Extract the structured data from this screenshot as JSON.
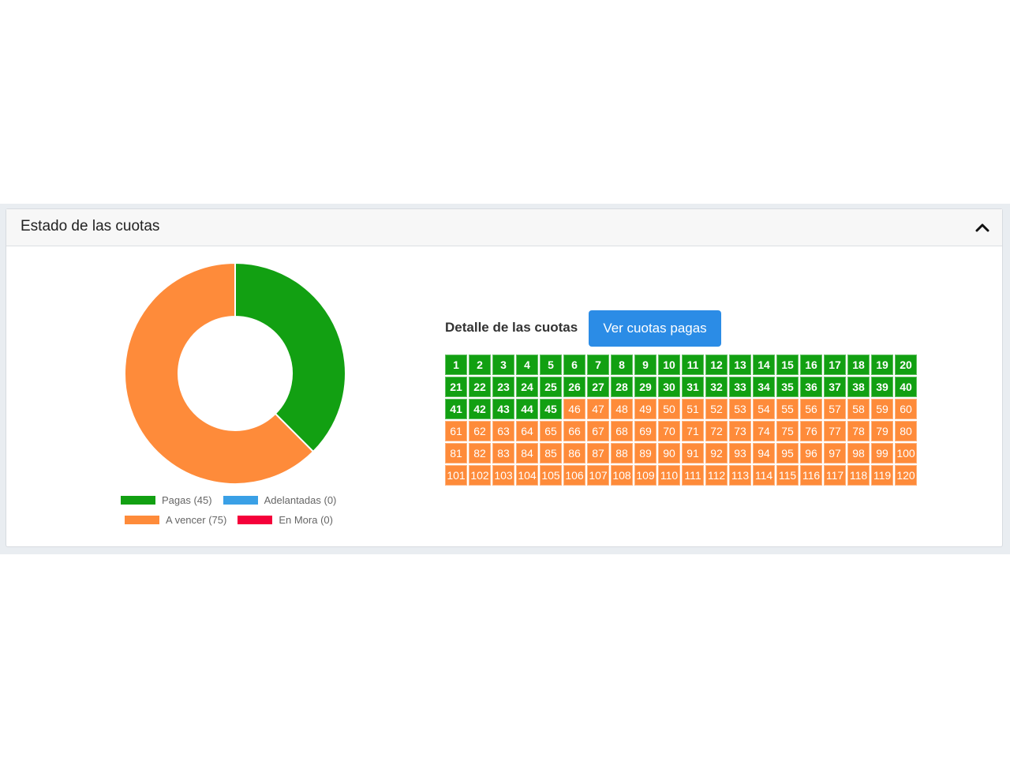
{
  "card": {
    "title": "Estado de las cuotas"
  },
  "icons": {
    "collapse": "chevron-up-icon"
  },
  "colors": {
    "paid": "#12a012",
    "advanced": "#3aa0e6",
    "due": "#fe8b3a",
    "overdue": "#f5003a",
    "button": "#2b8ce6"
  },
  "chart_data": {
    "type": "doughnut",
    "slices": [
      {
        "label": "Pagas",
        "value": 45,
        "color": "#12a012"
      },
      {
        "label": "Adelantadas",
        "value": 0,
        "color": "#3aa0e6"
      },
      {
        "label": "A vencer",
        "value": 75,
        "color": "#fe8b3a"
      },
      {
        "label": "En Mora",
        "value": 0,
        "color": "#f5003a"
      }
    ],
    "legend": {
      "position": "bottom",
      "labels": [
        "Pagas (45)",
        "Adelantadas (0)",
        "A vencer (75)",
        "En Mora (0)"
      ]
    }
  },
  "detail": {
    "label": "Detalle de las cuotas",
    "button_label": "Ver cuotas pagas",
    "total": 120,
    "paid_count": 45
  }
}
